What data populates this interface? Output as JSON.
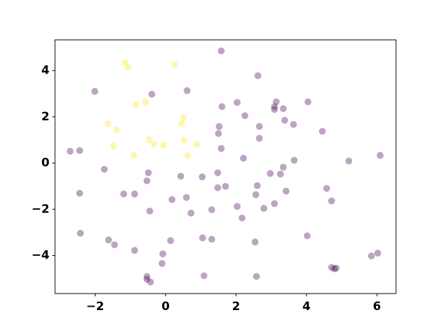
{
  "chart_data": {
    "type": "scatter",
    "xlim": [
      -3.14,
      6.54
    ],
    "ylim": [
      -5.65,
      5.33
    ],
    "xticks": [
      {
        "value": -2,
        "label": "−2"
      },
      0,
      2,
      4,
      6
    ],
    "yticks": [
      {
        "value": -4,
        "label": "−4"
      },
      {
        "value": -2,
        "label": "−2"
      },
      0,
      2,
      4
    ],
    "grid": false,
    "series": [
      {
        "color": "#440154",
        "x": [
          1.58,
          2.62,
          -2.01,
          0.61,
          -0.39,
          4.04,
          3.14,
          2.03,
          1.6,
          3.09,
          3.34,
          3.09,
          2.25,
          3.38,
          3.63,
          2.66,
          1.52,
          4.45,
          1.5,
          2.66,
          -2.71,
          -2.44,
          1.58,
          3.65,
          2.21,
          5.2,
          6.09,
          -1.74,
          3.34,
          -0.49,
          -0.53,
          2.97,
          3.26,
          1.48,
          0.43,
          1.04,
          2.6,
          1.48,
          1.7,
          4.57,
          -2.44,
          -1.19,
          -0.88,
          3.42,
          2.56,
          0.59,
          0.18,
          4.71,
          3.09,
          2.03,
          2.79,
          1.31,
          -0.45,
          0.72,
          2.17,
          -2.42,
          4.02,
          1.05,
          1.31,
          -1.62,
          0.14,
          -1.45,
          2.54,
          -0.88,
          -0.08,
          6.02,
          5.84,
          -0.1,
          4.71,
          4.84,
          4.79,
          -0.53,
          -0.53,
          -0.43,
          1.09,
          2.58
        ],
        "y": [
          4.85,
          3.78,
          3.1,
          3.13,
          2.98,
          2.65,
          2.65,
          2.62,
          2.44,
          2.44,
          2.35,
          2.32,
          2.05,
          1.85,
          1.67,
          1.58,
          1.58,
          1.37,
          1.28,
          1.07,
          0.51,
          0.54,
          0.63,
          0.12,
          0.21,
          0.09,
          0.33,
          -0.27,
          -0.18,
          -0.42,
          -0.77,
          -0.45,
          -0.48,
          -0.42,
          -0.57,
          -0.6,
          -0.98,
          -1.07,
          -1.01,
          -1.1,
          -1.31,
          -1.34,
          -1.34,
          -1.22,
          -1.37,
          -1.49,
          -1.58,
          -1.64,
          -1.76,
          -1.88,
          -1.96,
          -2.02,
          -2.08,
          -2.17,
          -2.38,
          -3.04,
          -3.15,
          -3.24,
          -3.3,
          -3.33,
          -3.36,
          -3.54,
          -3.42,
          -3.78,
          -3.93,
          -3.9,
          -4.02,
          -4.35,
          -4.52,
          -4.55,
          -4.58,
          -4.91,
          -5.03,
          -5.15,
          -4.88,
          -4.91
        ]
      },
      {
        "color": "#fde725",
        "x": [
          -1.15,
          -1.07,
          0.25,
          -0.57,
          -0.84,
          0.51,
          -1.64,
          0.45,
          -1.39,
          -1.48,
          -0.47,
          -0.33,
          -0.06,
          0.53,
          0.88,
          0.63,
          -0.9
        ],
        "y": [
          4.35,
          4.14,
          4.26,
          2.65,
          2.53,
          1.96,
          1.7,
          1.7,
          1.43,
          0.74,
          1.01,
          0.83,
          0.77,
          0.98,
          0.8,
          0.33,
          0.33
        ]
      }
    ]
  }
}
